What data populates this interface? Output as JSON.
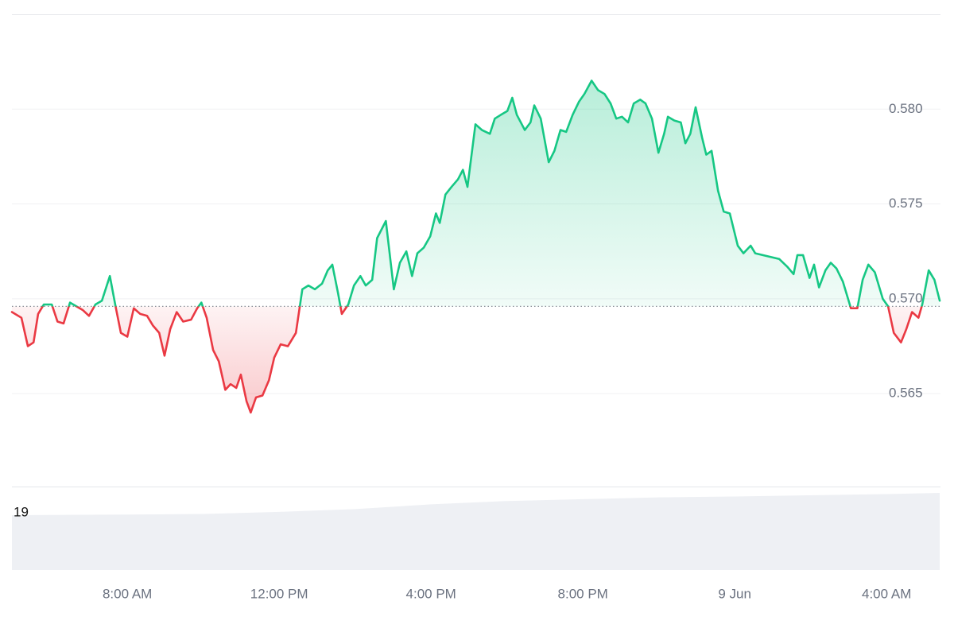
{
  "chart_data": [
    {
      "type": "line",
      "x": [
        4.96,
        5.21,
        5.38,
        5.53,
        5.65,
        5.8,
        6.01,
        6.16,
        6.32,
        6.49,
        6.66,
        6.83,
        6.99,
        7.16,
        7.33,
        7.54,
        7.69,
        7.83,
        8.0,
        8.17,
        8.34,
        8.52,
        8.67,
        8.84,
        8.98,
        9.13,
        9.3,
        9.47,
        9.68,
        9.84,
        9.95,
        10.09,
        10.26,
        10.41,
        10.58,
        10.72,
        10.87,
        10.99,
        11.14,
        11.25,
        11.39,
        11.56,
        11.73,
        11.87,
        12.04,
        12.23,
        12.44,
        12.61,
        12.77,
        12.94,
        13.13,
        13.28,
        13.4,
        13.55,
        13.65,
        13.82,
        13.97,
        14.14,
        14.28,
        14.45,
        14.58,
        14.81,
        15.02,
        15.18,
        15.35,
        15.5,
        15.64,
        15.81,
        15.98,
        16.13,
        16.23,
        16.38,
        16.54,
        16.71,
        16.84,
        16.96,
        17.17,
        17.34,
        17.55,
        17.68,
        17.84,
        18.01,
        18.14,
        18.26,
        18.47,
        18.62,
        18.72,
        18.89,
        19.1,
        19.25,
        19.41,
        19.56,
        19.73,
        19.9,
        20.04,
        20.23,
        20.4,
        20.57,
        20.73,
        20.88,
        21.03,
        21.19,
        21.34,
        21.51,
        21.65,
        21.82,
        21.99,
        22.14,
        22.24,
        22.41,
        22.58,
        22.7,
        22.83,
        22.97,
        23.14,
        23.25,
        23.39,
        23.56,
        23.71,
        23.87,
        24.08,
        24.23,
        24.42,
        24.54,
        24.75,
        24.96,
        25.17,
        25.38,
        25.55,
        25.65,
        25.8,
        25.97,
        26.09,
        26.22,
        26.39,
        26.53,
        26.68,
        26.85,
        27.06,
        27.23,
        27.37,
        27.52,
        27.69,
        27.9,
        28.04,
        28.19,
        28.38,
        28.52,
        28.67,
        28.84,
        28.94,
        29.11,
        29.26,
        29.4
      ],
      "values": [
        0.5693,
        0.569,
        0.5675,
        0.5677,
        0.5692,
        0.5697,
        0.5697,
        0.5688,
        0.5687,
        0.5698,
        0.5696,
        0.5694,
        0.5691,
        0.5697,
        0.5699,
        0.5712,
        0.5696,
        0.5682,
        0.568,
        0.5695,
        0.5692,
        0.5691,
        0.5686,
        0.5682,
        0.567,
        0.5684,
        0.5693,
        0.5688,
        0.5689,
        0.5695,
        0.5698,
        0.569,
        0.5673,
        0.5667,
        0.5652,
        0.5655,
        0.5653,
        0.566,
        0.5646,
        0.564,
        0.5648,
        0.5649,
        0.5657,
        0.5669,
        0.5676,
        0.5675,
        0.5682,
        0.5705,
        0.5707,
        0.5705,
        0.5708,
        0.5715,
        0.5718,
        0.5703,
        0.5692,
        0.5697,
        0.5707,
        0.5712,
        0.5707,
        0.571,
        0.5732,
        0.5741,
        0.5705,
        0.5719,
        0.5725,
        0.5712,
        0.5724,
        0.5727,
        0.5733,
        0.5745,
        0.574,
        0.5755,
        0.5759,
        0.5763,
        0.5768,
        0.5759,
        0.5792,
        0.5789,
        0.5787,
        0.5795,
        0.5797,
        0.5799,
        0.5806,
        0.5797,
        0.5789,
        0.5793,
        0.5802,
        0.5795,
        0.5772,
        0.5778,
        0.5789,
        0.5788,
        0.5797,
        0.5804,
        0.5808,
        0.5815,
        0.581,
        0.5808,
        0.5803,
        0.5795,
        0.5796,
        0.5793,
        0.5803,
        0.5805,
        0.5803,
        0.5795,
        0.5777,
        0.5787,
        0.5796,
        0.5794,
        0.5793,
        0.5782,
        0.5787,
        0.5801,
        0.5785,
        0.5776,
        0.5778,
        0.5757,
        0.5746,
        0.5745,
        0.5728,
        0.5724,
        0.5728,
        0.5724,
        0.5723,
        0.5722,
        0.5721,
        0.5717,
        0.5713,
        0.5723,
        0.5723,
        0.5711,
        0.5718,
        0.5706,
        0.5715,
        0.5719,
        0.5716,
        0.5709,
        0.5695,
        0.5695,
        0.571,
        0.5718,
        0.5714,
        0.57,
        0.5696,
        0.5682,
        0.5677,
        0.5684,
        0.5693,
        0.569,
        0.5697,
        0.5715,
        0.571,
        0.5699
      ],
      "baseline": 0.5696,
      "up_color": "#16c784",
      "down_color": "#ea3943",
      "xlim": [
        4.96,
        29.42
      ],
      "xticks": [
        {
          "value": 8,
          "label": "8:00 AM"
        },
        {
          "value": 12,
          "label": "12:00 PM"
        },
        {
          "value": 16,
          "label": "4:00 PM"
        },
        {
          "value": 20,
          "label": "8:00 PM"
        },
        {
          "value": 24,
          "label": "9 Jun"
        },
        {
          "value": 28,
          "label": "4:00 AM"
        }
      ],
      "ylim": [
        0.5601,
        0.585
      ],
      "yticks": [
        0.565,
        {
          "value": 0.57,
          "label": "0.570"
        },
        0.575,
        {
          "value": 0.58,
          "label": "0.580"
        }
      ],
      "grid": true
    },
    {
      "type": "area",
      "x": [
        4.96,
        8,
        10,
        12,
        14,
        16,
        18,
        20,
        22,
        24,
        26,
        28,
        29.4
      ],
      "values": [
        18.2,
        18.4,
        18.6,
        19.3,
        20.2,
        21.8,
        22.9,
        23.5,
        24.1,
        24.4,
        24.8,
        25.2,
        25.6
      ],
      "color": "#eef0f4",
      "xlim": [
        4.96,
        29.42
      ],
      "ylim": [
        0,
        27.7
      ],
      "yticks": [
        19
      ]
    }
  ]
}
